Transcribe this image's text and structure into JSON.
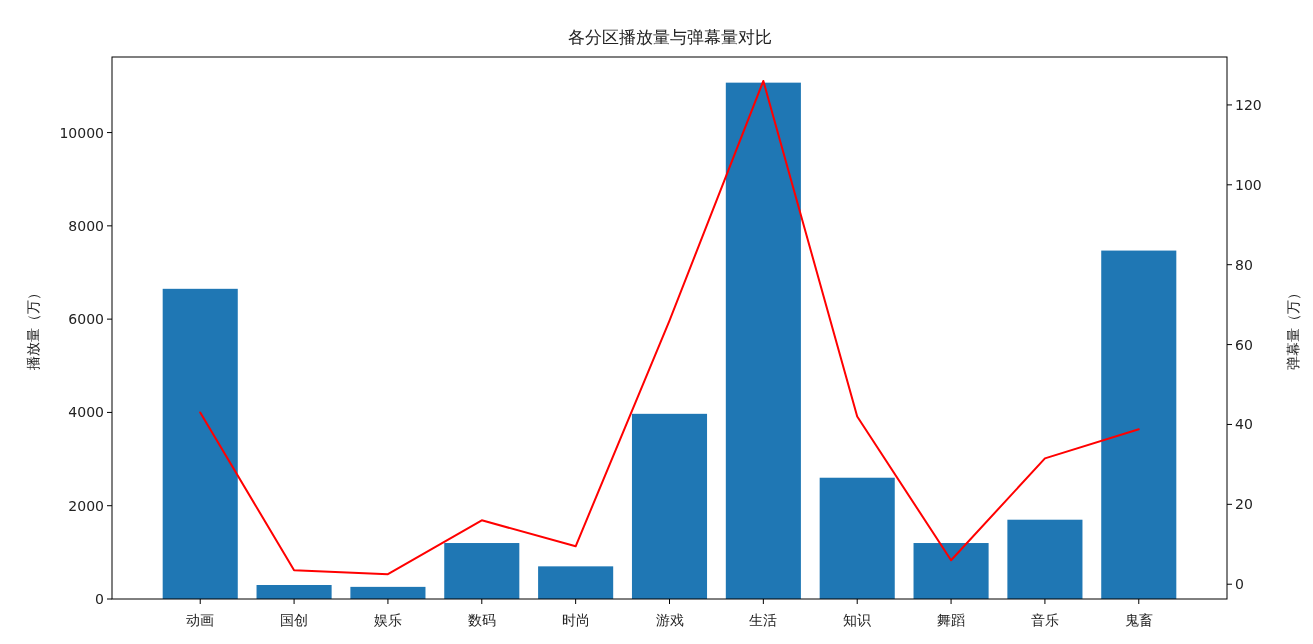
{
  "chart_data": {
    "type": "bar",
    "title": "各分区播放量与弹幕量对比",
    "ylabel": "播放量（万）",
    "y2label": "弹幕量（万）",
    "categories": [
      "动画",
      "国创",
      "娱乐",
      "数码",
      "时尚",
      "游戏",
      "生活",
      "知识",
      "舞蹈",
      "音乐",
      "鬼畜"
    ],
    "series": [
      {
        "color": "#1f77b4",
        "values": [
          6650,
          300,
          260,
          1200,
          700,
          3970,
          11070,
          2600,
          1200,
          1700,
          7470
        ]
      },
      {
        "type": "line",
        "axis": "y2",
        "color": "#ff0000",
        "values": [
          43,
          3.5,
          2.5,
          16,
          9.5,
          66,
          126,
          42,
          6,
          31.5,
          38.8
        ]
      }
    ],
    "ylim": [
      0,
      11620
    ],
    "yticks": [
      0,
      2000,
      4000,
      6000,
      8000,
      10000
    ],
    "y2lim": [
      -3.7,
      132
    ],
    "y2ticks": [
      0,
      20,
      40,
      60,
      80,
      100,
      120
    ],
    "grid": false
  }
}
